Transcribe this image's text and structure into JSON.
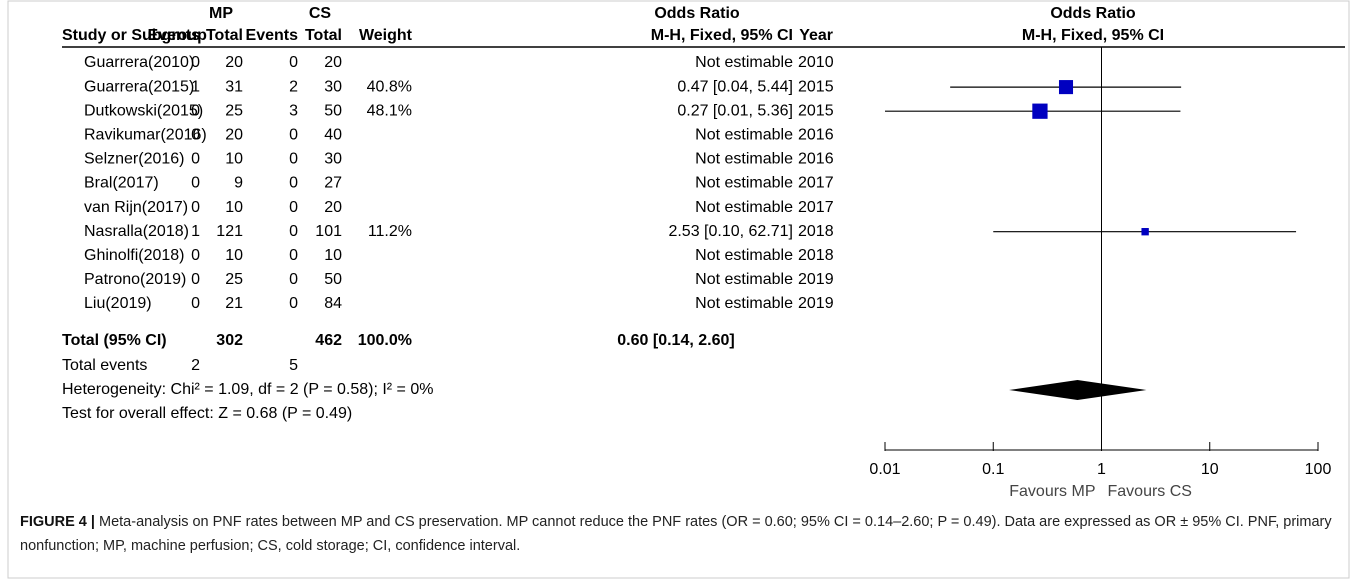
{
  "chart_data": {
    "type": "forest",
    "group_headers": [
      "MP",
      "CS",
      "Odds Ratio"
    ],
    "headers": [
      "Study or Subgroup",
      "Events",
      "Total",
      "Events",
      "Total",
      "Weight",
      "M-H, Fixed, 95% CI",
      "Year"
    ],
    "plot_title": "Odds Ratio",
    "plot_subtitle": "M-H, Fixed, 95% CI",
    "rows": [
      {
        "study": "Guarrera(2010)",
        "mp_events": 0,
        "mp_total": 20,
        "cs_events": 0,
        "cs_total": 20,
        "ci": "Not estimable",
        "year": 2010
      },
      {
        "study": "Guarrera(2015)",
        "mp_events": 1,
        "mp_total": 31,
        "cs_events": 2,
        "cs_total": 30,
        "weight": 40.8,
        "weight_label": "40.8%",
        "ci": "0.47 [0.04, 5.44]",
        "year": 2015,
        "or": 0.47,
        "lo": 0.04,
        "hi": 5.44
      },
      {
        "study": "Dutkowski(2015)",
        "mp_events": 0,
        "mp_total": 25,
        "cs_events": 3,
        "cs_total": 50,
        "weight": 48.1,
        "weight_label": "48.1%",
        "ci": "0.27 [0.01, 5.36]",
        "year": 2015,
        "or": 0.27,
        "lo": 0.01,
        "hi": 5.36
      },
      {
        "study": "Ravikumar(2016)",
        "mp_events": 0,
        "mp_total": 20,
        "cs_events": 0,
        "cs_total": 40,
        "ci": "Not estimable",
        "year": 2016
      },
      {
        "study": "Selzner(2016)",
        "mp_events": 0,
        "mp_total": 10,
        "cs_events": 0,
        "cs_total": 30,
        "ci": "Not estimable",
        "year": 2016
      },
      {
        "study": "Bral(2017)",
        "mp_events": 0,
        "mp_total": 9,
        "cs_events": 0,
        "cs_total": 27,
        "ci": "Not estimable",
        "year": 2017
      },
      {
        "study": "van Rijn(2017)",
        "mp_events": 0,
        "mp_total": 10,
        "cs_events": 0,
        "cs_total": 20,
        "ci": "Not estimable",
        "year": 2017
      },
      {
        "study": "Nasralla(2018)",
        "mp_events": 1,
        "mp_total": 121,
        "cs_events": 0,
        "cs_total": 101,
        "weight": 11.2,
        "weight_label": "11.2%",
        "ci": "2.53 [0.10, 62.71]",
        "year": 2018,
        "or": 2.53,
        "lo": 0.1,
        "hi": 62.71
      },
      {
        "study": "Ghinolfi(2018)",
        "mp_events": 0,
        "mp_total": 10,
        "cs_events": 0,
        "cs_total": 10,
        "ci": "Not estimable",
        "year": 2018
      },
      {
        "study": "Patrono(2019)",
        "mp_events": 0,
        "mp_total": 25,
        "cs_events": 0,
        "cs_total": 50,
        "ci": "Not estimable",
        "year": 2019
      },
      {
        "study": "Liu(2019)",
        "mp_events": 0,
        "mp_total": 21,
        "cs_events": 0,
        "cs_total": 84,
        "ci": "Not estimable",
        "year": 2019
      }
    ],
    "total": {
      "study": "Total (95% CI)",
      "mp_total": 302,
      "cs_total": 462,
      "weight_label": "100.0%",
      "ci": "0.60 [0.14, 2.60]",
      "or": 0.6,
      "lo": 0.14,
      "hi": 2.6
    },
    "total_events": {
      "label": "Total events",
      "mp_events": 2,
      "cs_events": 5
    },
    "heterogeneity": "Heterogeneity: Chi² = 1.09, df = 2 (P = 0.58); I² = 0%",
    "overall_effect": "Test for overall effect: Z = 0.68 (P = 0.49)",
    "log_x": true,
    "xlim": [
      0.01,
      100
    ],
    "xticks": [
      0.01,
      0.1,
      1,
      10,
      100
    ],
    "x_labels": [
      "Favours MP",
      "Favours CS"
    ],
    "color": "#0000c0",
    "diamond_color": "#000000"
  },
  "caption": {
    "label": "FIGURE 4 |",
    "text": "Meta-analysis on PNF rates between MP and CS preservation. MP cannot reduce the PNF rates (OR = 0.60; 95% CI = 0.14–2.60; P = 0.49). Data are expressed as OR ± 95% CI. PNF, primary nonfunction; MP, machine perfusion; CS, cold storage; CI, confidence interval."
  }
}
